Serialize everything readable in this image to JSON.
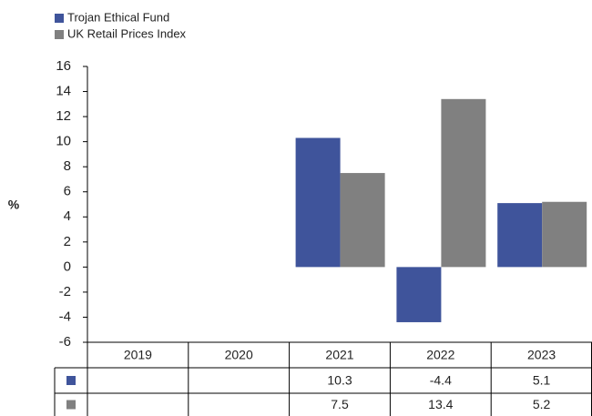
{
  "chart_data": {
    "type": "bar",
    "ylabel": "%",
    "categories": [
      "2019",
      "2020",
      "2021",
      "2022",
      "2023"
    ],
    "series": [
      {
        "name": "Trojan Ethical Fund",
        "color": "#3f549b",
        "values": [
          null,
          null,
          10.3,
          -4.4,
          5.1
        ]
      },
      {
        "name": "UK Retail Prices Index",
        "color": "#808080",
        "values": [
          null,
          null,
          7.5,
          13.4,
          5.2
        ]
      }
    ],
    "ylim": [
      -6,
      16
    ],
    "yticks": [
      -6,
      -4,
      -2,
      0,
      2,
      4,
      6,
      8,
      10,
      12,
      14,
      16
    ],
    "grid": false,
    "legend": "top-left"
  }
}
